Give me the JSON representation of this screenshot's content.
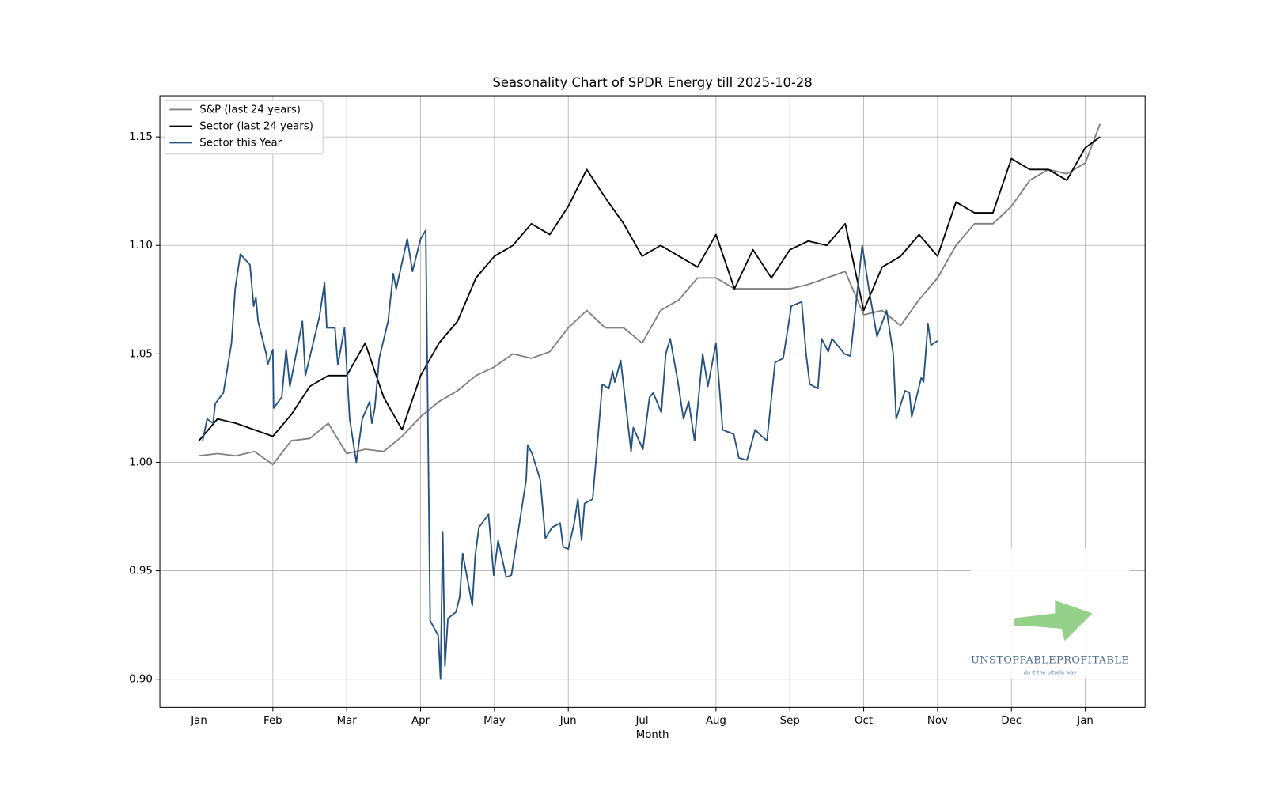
{
  "chart_data": {
    "type": "line",
    "title": "Seasonality Chart of SPDR Energy till 2025-10-28",
    "x_label": "Month",
    "x": [
      0,
      0.25,
      0.5,
      0.75,
      1,
      1.25,
      1.5,
      1.75,
      2,
      2.25,
      2.5,
      2.75,
      3,
      3.25,
      3.5,
      3.75,
      4,
      4.25,
      4.5,
      4.75,
      5,
      5.25,
      5.5,
      5.75,
      6,
      6.25,
      6.5,
      6.75,
      7,
      7.25,
      7.5,
      7.75,
      8,
      8.25,
      8.5,
      8.75,
      9,
      9.25,
      9.5,
      9.75,
      10,
      10.25,
      10.5,
      10.75,
      11,
      11.25,
      11.5,
      11.75,
      12,
      12.2
    ],
    "series": [
      {
        "name": "S&P (last 24 years)",
        "color": "#808080",
        "values": [
          1.003,
          1.004,
          1.003,
          1.005,
          0.999,
          1.01,
          1.011,
          1.018,
          1.004,
          1.006,
          1.005,
          1.012,
          1.021,
          1.028,
          1.033,
          1.04,
          1.044,
          1.05,
          1.048,
          1.051,
          1.062,
          1.07,
          1.062,
          1.062,
          1.055,
          1.07,
          1.075,
          1.085,
          1.085,
          1.08,
          1.08,
          1.08,
          1.08,
          1.082,
          1.085,
          1.088,
          1.068,
          1.07,
          1.063,
          1.075,
          1.085,
          1.1,
          1.11,
          1.11,
          1.118,
          1.13,
          1.135,
          1.133,
          1.138,
          1.156
        ]
      },
      {
        "name": "Sector (last 24 years)",
        "color": "#000000",
        "values": [
          1.01,
          1.02,
          1.018,
          1.015,
          1.012,
          1.022,
          1.035,
          1.04,
          1.04,
          1.055,
          1.03,
          1.015,
          1.04,
          1.055,
          1.065,
          1.085,
          1.095,
          1.1,
          1.11,
          1.105,
          1.118,
          1.135,
          1.122,
          1.11,
          1.095,
          1.1,
          1.095,
          1.09,
          1.105,
          1.08,
          1.098,
          1.085,
          1.098,
          1.102,
          1.1,
          1.11,
          1.07,
          1.09,
          1.095,
          1.105,
          1.095,
          1.12,
          1.115,
          1.115,
          1.14,
          1.135,
          1.135,
          1.13,
          1.145,
          1.15
        ]
      },
      {
        "name": "Sector this Year",
        "color": "#245180",
        "x": [
          0.05,
          0.11,
          0.19,
          0.22,
          0.33,
          0.44,
          0.49,
          0.56,
          0.69,
          0.74,
          0.77,
          0.8,
          0.91,
          0.93,
          1.0,
          1.01,
          1.12,
          1.18,
          1.23,
          1.4,
          1.44,
          1.63,
          1.7,
          1.73,
          1.84,
          1.88,
          1.97,
          2.04,
          2.13,
          2.21,
          2.31,
          2.34,
          2.38,
          2.44,
          2.56,
          2.63,
          2.67,
          2.82,
          2.89,
          3.0,
          3.07,
          3.13,
          3.24,
          3.27,
          3.3,
          3.33,
          3.37,
          3.48,
          3.53,
          3.57,
          3.7,
          3.74,
          3.79,
          3.92,
          3.99,
          4.05,
          4.16,
          4.23,
          4.43,
          4.45,
          4.51,
          4.62,
          4.69,
          4.78,
          4.89,
          4.93,
          5.0,
          5.08,
          5.13,
          5.18,
          5.22,
          5.33,
          5.41,
          5.46,
          5.55,
          5.6,
          5.63,
          5.71,
          5.85,
          5.88,
          6.01,
          6.1,
          6.15,
          6.26,
          6.32,
          6.38,
          6.48,
          6.56,
          6.63,
          6.71,
          6.82,
          6.89,
          7.0,
          7.09,
          7.24,
          7.31,
          7.42,
          7.53,
          7.62,
          7.69,
          7.8,
          7.91,
          8.02,
          8.16,
          8.22,
          8.27,
          8.38,
          8.43,
          8.52,
          8.57,
          8.74,
          8.82,
          8.98,
          9.07,
          9.18,
          9.31,
          9.4,
          9.44,
          9.56,
          9.62,
          9.65,
          9.78,
          9.81,
          9.87,
          9.91,
          10.0
        ],
        "values": [
          1.01,
          1.02,
          1.018,
          1.027,
          1.032,
          1.055,
          1.08,
          1.096,
          1.091,
          1.072,
          1.076,
          1.065,
          1.05,
          1.045,
          1.052,
          1.025,
          1.03,
          1.052,
          1.035,
          1.065,
          1.04,
          1.067,
          1.083,
          1.062,
          1.062,
          1.045,
          1.062,
          1.02,
          1.0,
          1.02,
          1.028,
          1.018,
          1.025,
          1.048,
          1.065,
          1.087,
          1.08,
          1.103,
          1.088,
          1.103,
          1.107,
          0.927,
          0.92,
          0.9,
          0.968,
          0.906,
          0.928,
          0.931,
          0.938,
          0.958,
          0.934,
          0.957,
          0.97,
          0.976,
          0.948,
          0.964,
          0.947,
          0.948,
          0.992,
          1.008,
          1.004,
          0.992,
          0.965,
          0.97,
          0.972,
          0.961,
          0.96,
          0.972,
          0.983,
          0.964,
          0.981,
          0.983,
          1.015,
          1.036,
          1.034,
          1.042,
          1.037,
          1.047,
          1.005,
          1.016,
          1.006,
          1.03,
          1.032,
          1.023,
          1.05,
          1.057,
          1.038,
          1.02,
          1.028,
          1.01,
          1.05,
          1.035,
          1.055,
          1.015,
          1.013,
          1.002,
          1.001,
          1.015,
          1.012,
          1.01,
          1.046,
          1.048,
          1.072,
          1.074,
          1.05,
          1.036,
          1.034,
          1.057,
          1.051,
          1.057,
          1.05,
          1.049,
          1.1,
          1.08,
          1.058,
          1.07,
          1.05,
          1.02,
          1.033,
          1.032,
          1.021,
          1.039,
          1.037,
          1.064,
          1.054,
          1.056
        ]
      }
    ],
    "xlim": [
      -0.53,
      12.81
    ],
    "xticks": [
      {
        "value": 0,
        "label": "Jan"
      },
      {
        "value": 1,
        "label": "Feb"
      },
      {
        "value": 2,
        "label": "Mar"
      },
      {
        "value": 3,
        "label": "Apr"
      },
      {
        "value": 4,
        "label": "May"
      },
      {
        "value": 5,
        "label": "Jun"
      },
      {
        "value": 6,
        "label": "Jul"
      },
      {
        "value": 7,
        "label": "Aug"
      },
      {
        "value": 8,
        "label": "Sep"
      },
      {
        "value": 9,
        "label": "Oct"
      },
      {
        "value": 10,
        "label": "Nov"
      },
      {
        "value": 11,
        "label": "Dec"
      },
      {
        "value": 12,
        "label": "Jan"
      }
    ],
    "ylim": [
      0.887,
      1.169
    ],
    "yticks": [
      {
        "value": 0.9,
        "label": "0.90"
      },
      {
        "value": 0.95,
        "label": "0.95"
      },
      {
        "value": 1.0,
        "label": "1.00"
      },
      {
        "value": 1.05,
        "label": "1.05"
      },
      {
        "value": 1.1,
        "label": "1.10"
      },
      {
        "value": 1.15,
        "label": "1.15"
      }
    ],
    "grid": true,
    "legend": "upper-left",
    "watermark": {
      "brand": "UNSTOPPABLEPROFITABLE",
      "tagline": "do it the ultrela way"
    }
  }
}
